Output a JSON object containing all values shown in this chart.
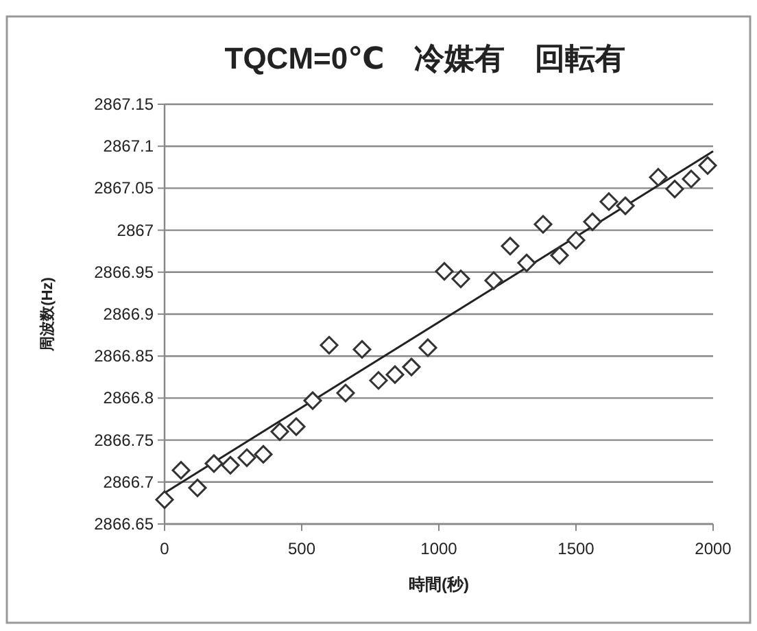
{
  "chart_data": {
    "type": "scatter",
    "title": "TQCM=0℃　冷媒有　回転有",
    "xlabel": "時間(秒)",
    "ylabel": "周波数(Hz)",
    "xlim": [
      0,
      2000
    ],
    "xticks": [
      0,
      500,
      1000,
      1500,
      2000
    ],
    "ylim": [
      2866.65,
      2867.15
    ],
    "yticks": [
      2866.65,
      2866.7,
      2866.75,
      2866.8,
      2866.85,
      2866.9,
      2866.95,
      2867,
      2867.05,
      2867.1,
      2867.15
    ],
    "grid": "y",
    "marker": "diamond",
    "series": [
      {
        "color": "#333333",
        "x": [
          0,
          60,
          120,
          180,
          240,
          300,
          360,
          420,
          480,
          540,
          600,
          660,
          720,
          780,
          840,
          900,
          960,
          1020,
          1080,
          1200,
          1260,
          1320,
          1380,
          1440,
          1500,
          1560,
          1620,
          1680,
          1800,
          1860,
          1920,
          1980
        ],
        "values": [
          2866.679,
          2866.714,
          2866.693,
          2866.722,
          2866.72,
          2866.729,
          2866.733,
          2866.76,
          2866.766,
          2866.797,
          2866.863,
          2866.806,
          2866.858,
          2866.821,
          2866.828,
          2866.837,
          2866.86,
          2866.951,
          2866.942,
          2866.94,
          2866.981,
          2866.961,
          2867.007,
          2866.97,
          2866.988,
          2867.01,
          2867.034,
          2867.029,
          2867.063,
          2867.049,
          2867.061,
          2867.077
        ]
      },
      {
        "type": "line",
        "color": "#222222",
        "marker": "none",
        "x": [
          0,
          2000
        ],
        "values": [
          2866.687,
          2867.094
        ]
      }
    ]
  }
}
